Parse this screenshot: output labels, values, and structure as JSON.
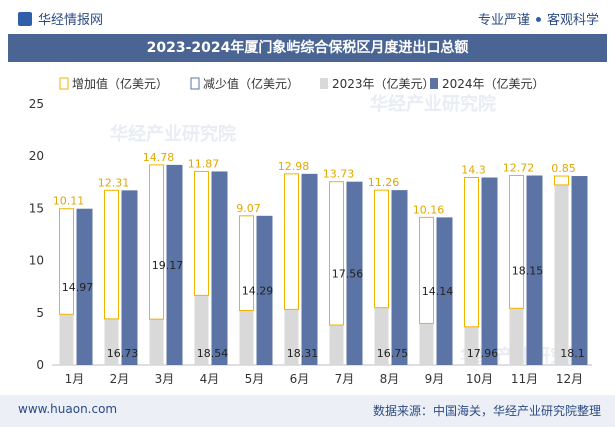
{
  "header": {
    "brand": "华经情报网",
    "tag_left": "专业严谨",
    "tag_right": "客观科学"
  },
  "footer": {
    "url": "www.huaon.com",
    "source": "数据来源：中国海关，华经产业研究院整理"
  },
  "watermark": "华经产业研究院",
  "colors": {
    "title_bg": "#4a6494",
    "increase_border": "#f0b400",
    "decrease_border": "#5b74a5",
    "series_2023": "#d9d9d9",
    "series_2024": "#5b74a5",
    "increase_label": "#e0a800"
  },
  "chart_data": {
    "type": "bar",
    "title": "2023-2024年厦门象屿综合保税区月度进出口总额",
    "categories": [
      "1月",
      "2月",
      "3月",
      "4月",
      "5月",
      "6月",
      "7月",
      "8月",
      "9月",
      "10月",
      "11月",
      "12月"
    ],
    "ylim": [
      0,
      25
    ],
    "yticks": [
      0,
      5,
      10,
      15,
      20,
      25
    ],
    "legend": {
      "position": "top",
      "entries": [
        "增加值（亿美元）",
        "减少值（亿美元）",
        "2023年（亿美元）",
        "2024年（亿美元）"
      ]
    },
    "series": [
      {
        "name": "2023年（亿美元）",
        "values": [
          4.86,
          4.42,
          4.39,
          6.67,
          5.22,
          5.33,
          3.83,
          5.49,
          3.98,
          3.66,
          5.43,
          17.25
        ]
      },
      {
        "name": "2024年（亿美元）",
        "values": [
          14.97,
          16.73,
          19.17,
          18.54,
          14.29,
          18.31,
          17.56,
          16.75,
          14.14,
          17.96,
          18.15,
          18.1
        ]
      },
      {
        "name": "增加值（亿美元）",
        "values": [
          10.11,
          12.31,
          14.78,
          11.87,
          9.07,
          12.98,
          13.73,
          11.26,
          10.16,
          14.3,
          12.72,
          0.85
        ]
      }
    ]
  }
}
